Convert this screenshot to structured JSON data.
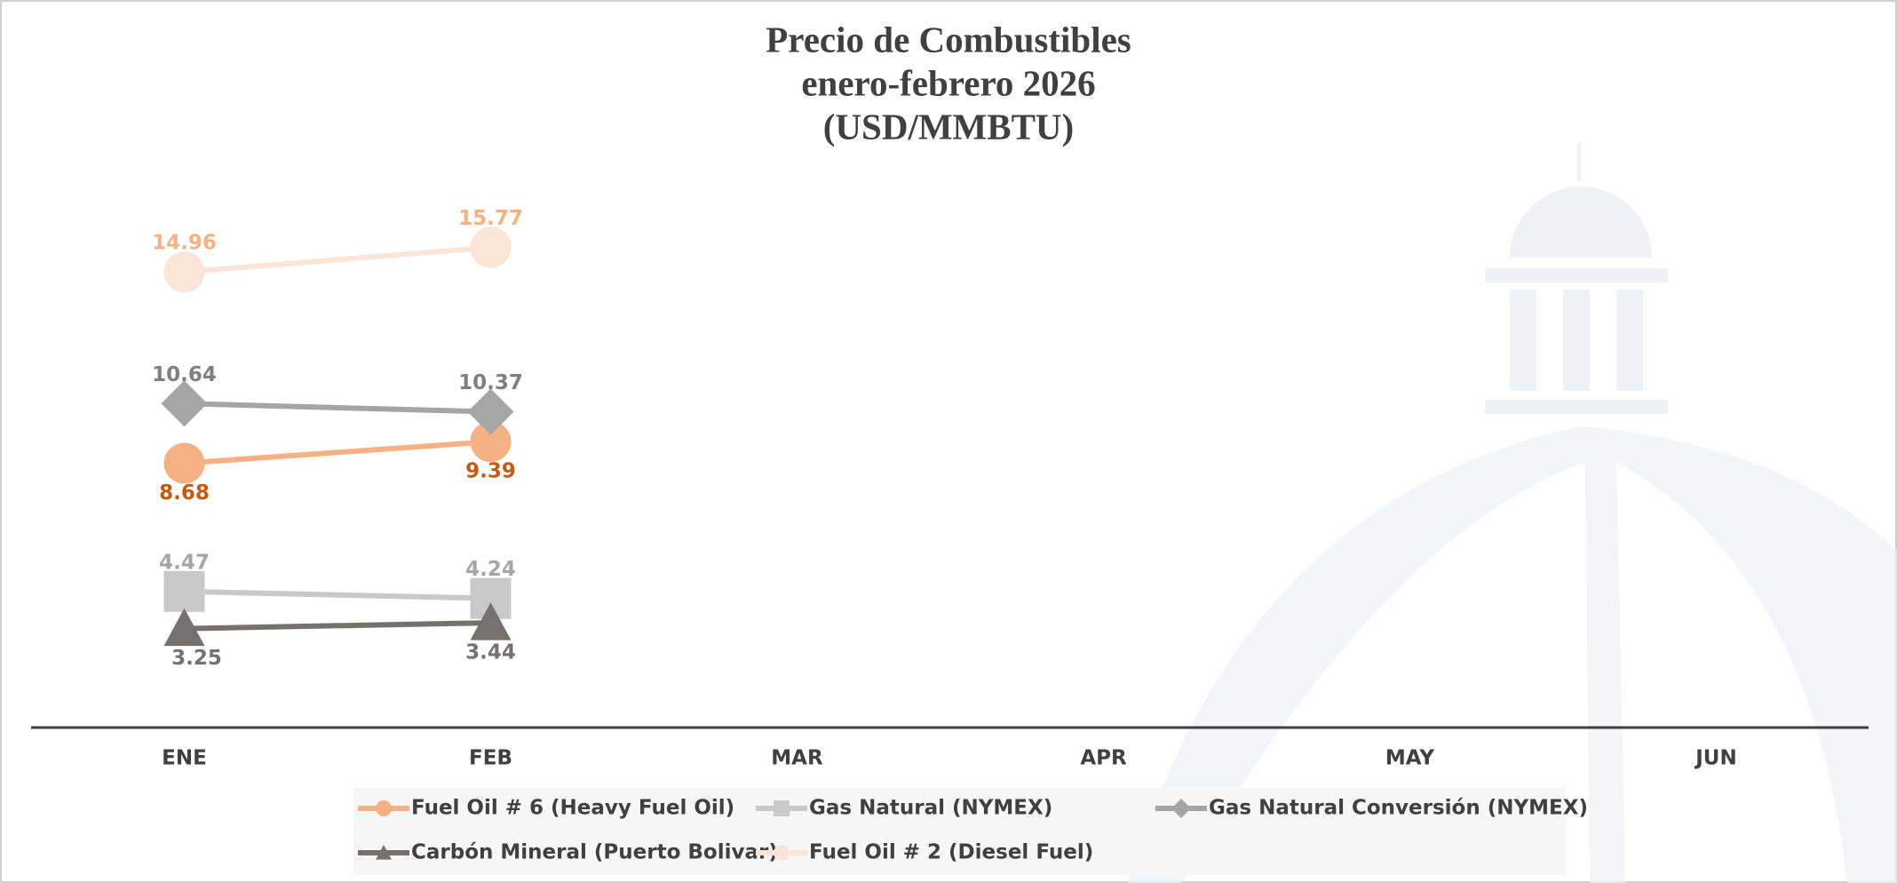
{
  "chart_data": {
    "type": "line",
    "title": [
      "Precio de Combustibles",
      "enero-febrero 2026",
      "(USD/MMBTU)"
    ],
    "categories": [
      "ENE",
      "FEB",
      "MAR",
      "APR",
      "MAY",
      "JUN"
    ],
    "ylim": [
      0,
      18
    ],
    "series": [
      {
        "name": "Fuel Oil # 6 (Heavy Fuel Oil)",
        "color": "#f4b183",
        "label_color": "#c55a11",
        "marker": "circle",
        "values": [
          8.68,
          9.39,
          null,
          null,
          null,
          null
        ]
      },
      {
        "name": "Gas Natural (NYMEX)",
        "color": "#c9c9c9",
        "label_color": "#a6a6a6",
        "marker": "square",
        "values": [
          4.47,
          4.24,
          null,
          null,
          null,
          null
        ]
      },
      {
        "name": "Gas Natural Conversión (NYMEX)",
        "color": "#a5a5a5",
        "label_color": "#7f7f7f",
        "marker": "diamond",
        "values": [
          10.64,
          10.37,
          null,
          null,
          null,
          null
        ]
      },
      {
        "name": "Carbón Mineral (Puerto Bolivar)",
        "color": "#767171",
        "label_color": "#767171",
        "marker": "triangle",
        "values": [
          3.25,
          3.44,
          null,
          null,
          null,
          null
        ]
      },
      {
        "name": "Fuel Oil # 2 (Diesel Fuel)",
        "color": "#fbe5d6",
        "label_color": "#f4b183",
        "marker": "circle",
        "values": [
          14.96,
          15.77,
          null,
          null,
          null,
          null
        ]
      }
    ]
  }
}
